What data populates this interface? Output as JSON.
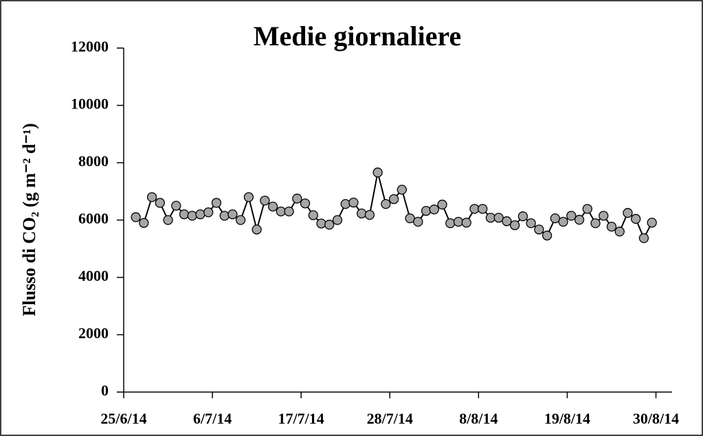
{
  "chart_data": {
    "type": "line",
    "title": "Medie giornaliere",
    "y_label": "Flusso di CO₂ (g m⁻² d⁻¹)",
    "x": [
      "26/6/14",
      "27/6/14",
      "28/6/14",
      "29/6/14",
      "30/6/14",
      "1/7/14",
      "2/7/14",
      "3/7/14",
      "4/7/14",
      "5/7/14",
      "6/7/14",
      "7/7/14",
      "8/7/14",
      "9/7/14",
      "10/7/14",
      "11/7/14",
      "12/7/14",
      "13/7/14",
      "14/7/14",
      "15/7/14",
      "16/7/14",
      "17/7/14",
      "18/7/14",
      "19/7/14",
      "20/7/14",
      "21/7/14",
      "22/7/14",
      "23/7/14",
      "24/7/14",
      "25/7/14",
      "26/7/14",
      "27/7/14",
      "28/7/14",
      "29/7/14",
      "30/7/14",
      "31/7/14",
      "1/8/14",
      "2/8/14",
      "3/8/14",
      "4/8/14",
      "5/8/14",
      "6/8/14",
      "7/8/14",
      "8/8/14",
      "9/8/14",
      "10/8/14",
      "11/8/14",
      "12/8/14",
      "13/8/14",
      "14/8/14",
      "15/8/14",
      "16/8/14",
      "17/8/14",
      "18/8/14",
      "19/8/14",
      "20/8/14",
      "21/8/14",
      "22/8/14",
      "23/8/14",
      "24/8/14",
      "25/8/14",
      "26/8/14",
      "27/8/14",
      "28/8/14",
      "29/8/14"
    ],
    "series": [
      {
        "name": "Flusso",
        "color": "#a6a6a6",
        "line_color": "#000000",
        "values": [
          6100,
          5900,
          6800,
          6600,
          6000,
          6500,
          6200,
          6150,
          6200,
          6270,
          6600,
          6150,
          6200,
          6000,
          6800,
          5670,
          6680,
          6470,
          6300,
          6300,
          6750,
          6580,
          6170,
          5880,
          5840,
          6000,
          6560,
          6610,
          6230,
          6180,
          7660,
          6560,
          6730,
          7060,
          6060,
          5940,
          6320,
          6370,
          6540,
          5890,
          5940,
          5910,
          6390,
          6390,
          6080,
          6080,
          5960,
          5820,
          6130,
          5890,
          5670,
          5460,
          6060,
          5940,
          6150,
          6010,
          6390,
          5890,
          6150,
          5770,
          5600,
          6250,
          6040,
          5370,
          5910
        ]
      }
    ],
    "xlim": [
      "25/6/14",
      "1/9/14"
    ],
    "xticks": [
      "25/6/14",
      "6/7/14",
      "17/7/14",
      "28/7/14",
      "8/8/14",
      "19/8/14",
      "30/8/14"
    ],
    "ylim": [
      0,
      12000
    ],
    "yticks": [
      0,
      2000,
      4000,
      6000,
      8000,
      10000,
      12000
    ]
  }
}
